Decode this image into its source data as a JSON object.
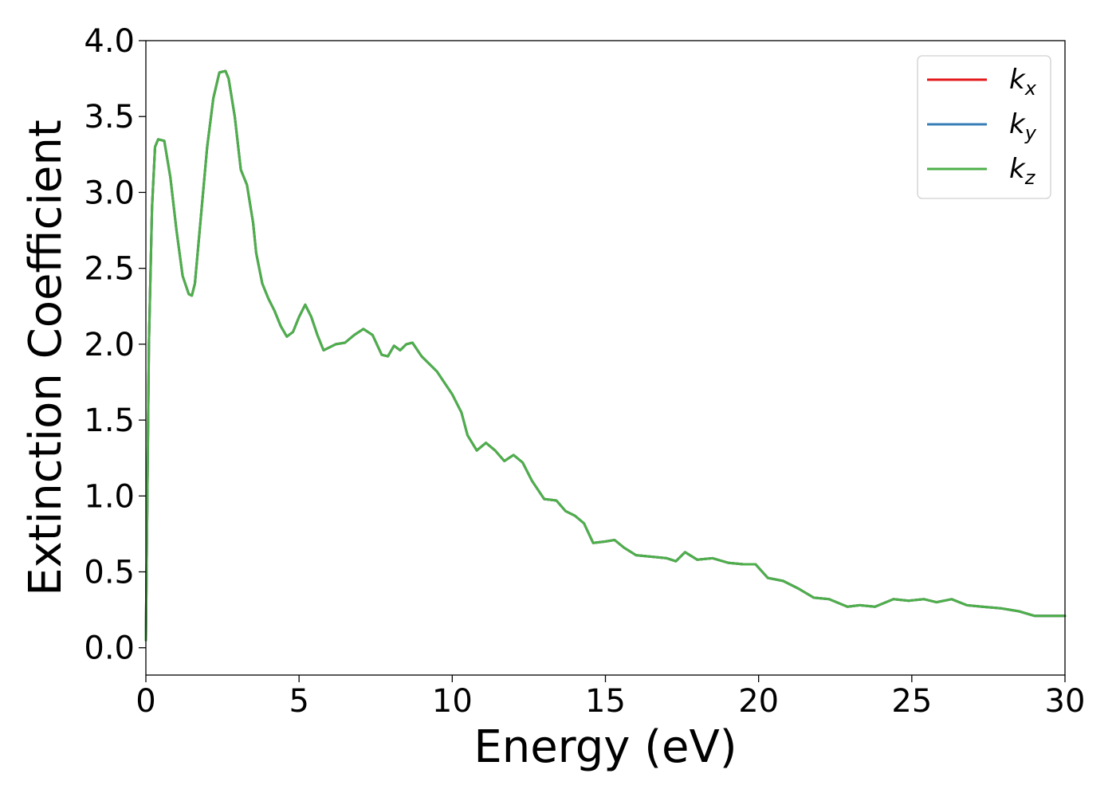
{
  "chart_data": {
    "type": "line",
    "xlabel": "Energy (eV)",
    "ylabel": "Extinction Coefficient",
    "xlim": [
      0,
      30
    ],
    "ylim": [
      -0.18,
      4.0
    ],
    "xticks": [
      0,
      5,
      10,
      15,
      20,
      25,
      30
    ],
    "xtick_labels": [
      "0",
      "5",
      "10",
      "15",
      "20",
      "25",
      "30"
    ],
    "yticks": [
      0.0,
      0.5,
      1.0,
      1.5,
      2.0,
      2.5,
      3.0,
      3.5,
      4.0
    ],
    "ytick_labels": [
      "0.0",
      "0.5",
      "1.0",
      "1.5",
      "2.0",
      "2.5",
      "3.0",
      "3.5",
      "4.0"
    ],
    "grid": false,
    "legend_position": "top-right",
    "x": [
      0,
      0.1,
      0.2,
      0.3,
      0.4,
      0.6,
      0.8,
      1.0,
      1.2,
      1.4,
      1.5,
      1.6,
      1.8,
      2.0,
      2.2,
      2.4,
      2.6,
      2.7,
      2.9,
      3.1,
      3.3,
      3.5,
      3.6,
      3.8,
      4.0,
      4.2,
      4.4,
      4.6,
      4.8,
      5.0,
      5.2,
      5.4,
      5.6,
      5.8,
      6.0,
      6.2,
      6.5,
      6.8,
      7.1,
      7.4,
      7.7,
      7.9,
      8.1,
      8.3,
      8.5,
      8.7,
      9.0,
      9.5,
      10.0,
      10.3,
      10.5,
      10.8,
      11.1,
      11.4,
      11.7,
      12.0,
      12.3,
      12.6,
      13.0,
      13.4,
      13.7,
      14.0,
      14.3,
      14.6,
      15.0,
      15.3,
      15.6,
      16.0,
      16.5,
      17.0,
      17.3,
      17.6,
      18.0,
      18.5,
      19.0,
      19.5,
      19.9,
      20.3,
      20.8,
      21.3,
      21.8,
      22.3,
      22.9,
      23.3,
      23.8,
      24.4,
      24.9,
      25.4,
      25.8,
      26.3,
      26.8,
      27.3,
      27.9,
      28.5,
      29.0,
      29.5,
      30.0
    ],
    "series": [
      {
        "name": "k_x",
        "legend_label": "k",
        "legend_sub": "x",
        "color": "#e41a1c",
        "values": [
          0.05,
          2.0,
          2.9,
          3.3,
          3.35,
          3.34,
          3.1,
          2.75,
          2.45,
          2.33,
          2.32,
          2.4,
          2.85,
          3.3,
          3.62,
          3.79,
          3.8,
          3.75,
          3.5,
          3.15,
          3.05,
          2.8,
          2.6,
          2.4,
          2.3,
          2.22,
          2.12,
          2.05,
          2.08,
          2.18,
          2.26,
          2.18,
          2.06,
          1.96,
          1.98,
          2.0,
          2.01,
          2.06,
          2.1,
          2.06,
          1.93,
          1.92,
          1.99,
          1.96,
          2.0,
          2.01,
          1.92,
          1.82,
          1.67,
          1.55,
          1.4,
          1.3,
          1.35,
          1.3,
          1.23,
          1.27,
          1.22,
          1.1,
          0.98,
          0.97,
          0.9,
          0.87,
          0.82,
          0.69,
          0.7,
          0.71,
          0.66,
          0.61,
          0.6,
          0.59,
          0.57,
          0.63,
          0.58,
          0.59,
          0.56,
          0.55,
          0.55,
          0.46,
          0.44,
          0.39,
          0.33,
          0.32,
          0.27,
          0.28,
          0.27,
          0.32,
          0.31,
          0.32,
          0.3,
          0.32,
          0.28,
          0.27,
          0.26,
          0.24,
          0.21,
          0.21,
          0.21
        ]
      },
      {
        "name": "k_y",
        "legend_label": "k",
        "legend_sub": "y",
        "color": "#377eb8",
        "values": [
          0.05,
          2.0,
          2.9,
          3.3,
          3.35,
          3.34,
          3.1,
          2.75,
          2.45,
          2.33,
          2.32,
          2.4,
          2.85,
          3.3,
          3.62,
          3.79,
          3.8,
          3.75,
          3.5,
          3.15,
          3.05,
          2.8,
          2.6,
          2.4,
          2.3,
          2.22,
          2.12,
          2.05,
          2.08,
          2.18,
          2.26,
          2.18,
          2.06,
          1.96,
          1.98,
          2.0,
          2.01,
          2.06,
          2.1,
          2.06,
          1.93,
          1.92,
          1.99,
          1.96,
          2.0,
          2.01,
          1.92,
          1.82,
          1.67,
          1.55,
          1.4,
          1.3,
          1.35,
          1.3,
          1.23,
          1.27,
          1.22,
          1.1,
          0.98,
          0.97,
          0.9,
          0.87,
          0.82,
          0.69,
          0.7,
          0.71,
          0.66,
          0.61,
          0.6,
          0.59,
          0.57,
          0.63,
          0.58,
          0.59,
          0.56,
          0.55,
          0.55,
          0.46,
          0.44,
          0.39,
          0.33,
          0.32,
          0.27,
          0.28,
          0.27,
          0.32,
          0.31,
          0.32,
          0.3,
          0.32,
          0.28,
          0.27,
          0.26,
          0.24,
          0.21,
          0.21,
          0.21
        ]
      },
      {
        "name": "k_z",
        "legend_label": "k",
        "legend_sub": "z",
        "color": "#4daf4a",
        "values": [
          0.05,
          2.0,
          2.9,
          3.3,
          3.35,
          3.34,
          3.1,
          2.75,
          2.45,
          2.33,
          2.32,
          2.4,
          2.85,
          3.3,
          3.62,
          3.79,
          3.8,
          3.75,
          3.5,
          3.15,
          3.05,
          2.8,
          2.6,
          2.4,
          2.3,
          2.22,
          2.12,
          2.05,
          2.08,
          2.18,
          2.26,
          2.18,
          2.06,
          1.96,
          1.98,
          2.0,
          2.01,
          2.06,
          2.1,
          2.06,
          1.93,
          1.92,
          1.99,
          1.96,
          2.0,
          2.01,
          1.92,
          1.82,
          1.67,
          1.55,
          1.4,
          1.3,
          1.35,
          1.3,
          1.23,
          1.27,
          1.22,
          1.1,
          0.98,
          0.97,
          0.9,
          0.87,
          0.82,
          0.69,
          0.7,
          0.71,
          0.66,
          0.61,
          0.6,
          0.59,
          0.57,
          0.63,
          0.58,
          0.59,
          0.56,
          0.55,
          0.55,
          0.46,
          0.44,
          0.39,
          0.33,
          0.32,
          0.27,
          0.28,
          0.27,
          0.32,
          0.31,
          0.32,
          0.3,
          0.32,
          0.28,
          0.27,
          0.26,
          0.24,
          0.21,
          0.21,
          0.21
        ]
      }
    ]
  }
}
